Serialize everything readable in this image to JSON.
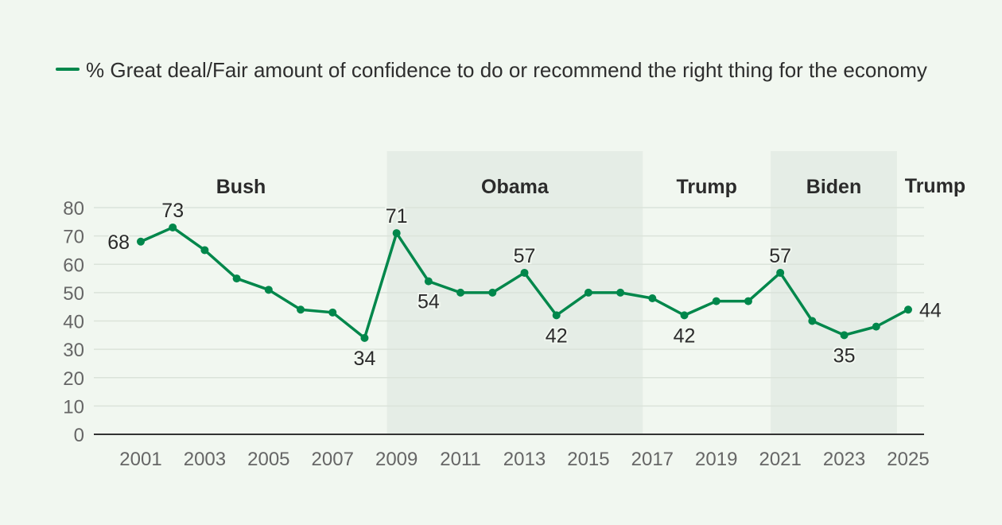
{
  "chart_data": {
    "type": "line",
    "title": "",
    "xlabel": "",
    "ylabel": "",
    "ylim": [
      0,
      80
    ],
    "yticks": [
      0,
      10,
      20,
      30,
      40,
      50,
      60,
      70,
      80
    ],
    "xticks": [
      2001,
      2003,
      2005,
      2007,
      2009,
      2011,
      2013,
      2015,
      2017,
      2019,
      2021,
      2023,
      2025
    ],
    "grid": true,
    "legend_position": "top-left",
    "series": [
      {
        "name": "% Great deal/Fair amount of confidence to do or recommend the right thing for the economy",
        "color": "#00874b",
        "x": [
          2001,
          2002,
          2003,
          2004,
          2005,
          2006,
          2007,
          2008,
          2009,
          2010,
          2011,
          2012,
          2013,
          2014,
          2015,
          2016,
          2017,
          2018,
          2019,
          2020,
          2021,
          2022,
          2023,
          2024,
          2025
        ],
        "values": [
          68,
          73,
          65,
          55,
          51,
          44,
          43,
          34,
          71,
          54,
          50,
          50,
          57,
          42,
          50,
          50,
          48,
          42,
          47,
          47,
          57,
          40,
          35,
          38,
          44
        ]
      }
    ],
    "data_labels": [
      {
        "x": 2001,
        "value": 68,
        "text": "68",
        "pos": "left"
      },
      {
        "x": 2002,
        "value": 73,
        "text": "73",
        "pos": "above"
      },
      {
        "x": 2008,
        "value": 34,
        "text": "34",
        "pos": "below"
      },
      {
        "x": 2009,
        "value": 71,
        "text": "71",
        "pos": "above"
      },
      {
        "x": 2010,
        "value": 54,
        "text": "54",
        "pos": "below"
      },
      {
        "x": 2013,
        "value": 57,
        "text": "57",
        "pos": "above"
      },
      {
        "x": 2014,
        "value": 42,
        "text": "42",
        "pos": "below"
      },
      {
        "x": 2018,
        "value": 42,
        "text": "42",
        "pos": "below"
      },
      {
        "x": 2021,
        "value": 57,
        "text": "57",
        "pos": "above"
      },
      {
        "x": 2023,
        "value": 35,
        "text": "35",
        "pos": "below"
      },
      {
        "x": 2025,
        "value": 44,
        "text": "44",
        "pos": "right"
      }
    ],
    "eras": [
      {
        "label": "Bush",
        "start": 2000.5,
        "end": 2008.7,
        "shaded": false
      },
      {
        "label": "Obama",
        "start": 2008.7,
        "end": 2016.7,
        "shaded": true
      },
      {
        "label": "Trump",
        "start": 2016.7,
        "end": 2020.7,
        "shaded": false
      },
      {
        "label": "Biden",
        "start": 2020.7,
        "end": 2024.65,
        "shaded": true
      },
      {
        "label": "Trump",
        "start": 2024.65,
        "end": 2026.5,
        "shaded": false
      }
    ],
    "colors": {
      "line": "#00874b",
      "shade": "#e5ede6",
      "grid": "#dbe3da",
      "axis": "#333333"
    }
  },
  "legend": {
    "label": "% Great deal/Fair amount of confidence to do or recommend the right thing for the economy"
  }
}
